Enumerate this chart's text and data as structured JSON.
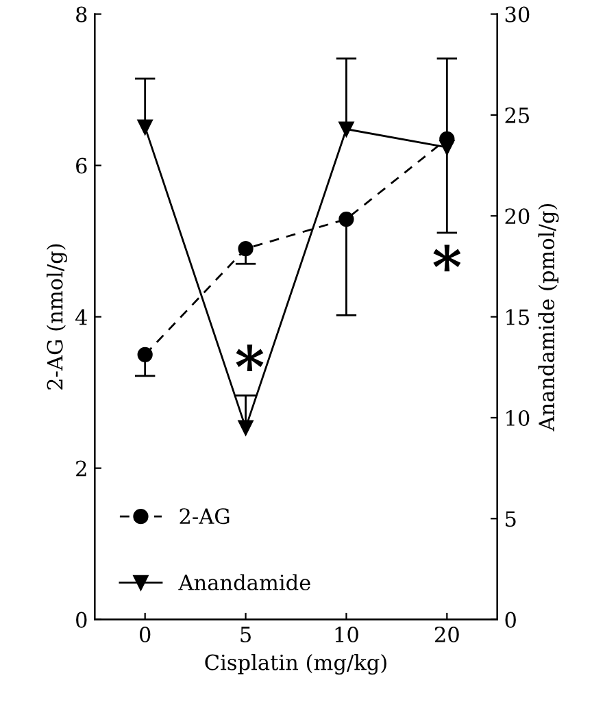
{
  "chart_data": {
    "type": "line",
    "xlabel": "Cisplatin (mg/kg)",
    "ylabel": "2-AG (nmol/g)",
    "y2label": "Anandamide (pmol/g)",
    "categories": [
      "0",
      "5",
      "10",
      "20"
    ],
    "series": [
      {
        "name": "2-AG",
        "color": "#000000",
        "values": [
          3.5,
          4.9,
          5.29,
          6.35
        ],
        "errors": [
          [
            3.22,
            3.5
          ],
          [
            4.7,
            4.9
          ],
          [
            4.02,
            5.29
          ],
          [
            5.11,
            6.35
          ]
        ],
        "marker": "circle",
        "line_style": "dashed"
      },
      {
        "name": "Anandamide",
        "color": "#000000",
        "axis": "y2",
        "values": [
          24.4,
          9.5,
          24.3,
          23.4
        ],
        "errors": [
          [
            24.4,
            26.8
          ],
          [
            9.5,
            11.1
          ],
          [
            24.3,
            27.8
          ],
          [
            23.4,
            27.8
          ]
        ],
        "marker": "triangle",
        "line_style": "solid"
      }
    ],
    "ylim": [
      0,
      8
    ],
    "yticks": [
      0,
      2,
      4,
      6,
      8
    ],
    "y2lim": [
      0,
      30
    ],
    "y2ticks": [
      0,
      5,
      10,
      15,
      20,
      25,
      30
    ],
    "annotations": [
      "*",
      "*"
    ],
    "legend": "bottom left",
    "grid": false
  }
}
